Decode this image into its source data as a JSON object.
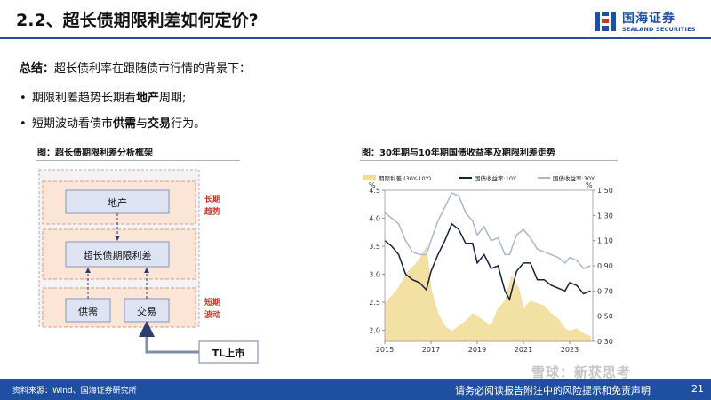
{
  "header": {
    "title": "2.2、超长债期限利差如何定价?",
    "logo_cn": "国海证券",
    "logo_en": "SEALAND SECURITIES"
  },
  "summary": {
    "label": "总结：",
    "text": "超长债利率在跟随债市行情的背景下：",
    "bullet1_pre": "期限利差趋势长期看",
    "bullet1_hl": "地产",
    "bullet1_post": "周期;",
    "bullet2_pre": "短期波动看债市",
    "bullet2_hl1": "供需",
    "bullet2_mid": "与",
    "bullet2_hl2": "交易",
    "bullet2_post": "行为。"
  },
  "diagram": {
    "title": "图：超长债期限利差分析框架",
    "real_estate": "地产",
    "spread": "超长债期限利差",
    "supply_demand": "供需",
    "trading": "交易",
    "tl": "TL上市",
    "long_term": [
      "长期",
      "趋势"
    ],
    "short_term": [
      "短期",
      "波动"
    ]
  },
  "chart_data": {
    "type": "line",
    "title": "图：30年期与10年期国债收益率及期限利差走势",
    "x_ticks": [
      "2015",
      "2017",
      "2019",
      "2021",
      "2023"
    ],
    "left_unit": "%",
    "right_unit": "%",
    "left_ticks": [
      "4.5",
      "4.0",
      "3.5",
      "3.0",
      "2.5",
      "2.0"
    ],
    "right_ticks": [
      "1.50",
      "1.30",
      "1.10",
      "0.90",
      "0.70",
      "0.50",
      "0.30"
    ],
    "left_ylim": [
      1.8,
      4.5
    ],
    "right_ylim": [
      0.3,
      1.5
    ],
    "xlim": [
      2015.0,
      2024.0
    ],
    "colors": {
      "spread": "#f2dc93",
      "y10": "#14213d",
      "y30": "#a9b7cd"
    },
    "series": [
      {
        "name": "期限利差 (30Y-10Y)",
        "axis": "right",
        "style": "area",
        "x": [
          2015.0,
          2015.5,
          2016.0,
          2016.5,
          2016.8,
          2017.0,
          2017.3,
          2017.6,
          2017.9,
          2018.2,
          2018.5,
          2018.8,
          2019.0,
          2019.3,
          2019.6,
          2019.9,
          2020.2,
          2020.5,
          2020.8,
          2021.0,
          2021.3,
          2021.6,
          2021.9,
          2022.2,
          2022.5,
          2022.8,
          2023.0,
          2023.3,
          2023.6,
          2023.9
        ],
        "values": [
          0.6,
          0.7,
          0.85,
          0.95,
          1.05,
          0.72,
          0.52,
          0.42,
          0.38,
          0.42,
          0.46,
          0.52,
          0.5,
          0.46,
          0.42,
          0.56,
          0.62,
          0.82,
          0.72,
          0.56,
          0.62,
          0.6,
          0.58,
          0.52,
          0.48,
          0.4,
          0.38,
          0.4,
          0.36,
          0.34
        ]
      },
      {
        "name": "国债收益率:10Y",
        "axis": "left",
        "style": "line",
        "x": [
          2015.0,
          2015.3,
          2015.6,
          2015.9,
          2016.2,
          2016.5,
          2016.8,
          2017.0,
          2017.3,
          2017.6,
          2017.9,
          2018.2,
          2018.5,
          2018.8,
          2019.0,
          2019.3,
          2019.6,
          2019.9,
          2020.2,
          2020.4,
          2020.7,
          2021.0,
          2021.3,
          2021.6,
          2021.9,
          2022.2,
          2022.5,
          2022.8,
          2023.0,
          2023.3,
          2023.6,
          2023.9
        ],
        "values": [
          3.6,
          3.5,
          3.35,
          3.0,
          2.9,
          2.85,
          2.72,
          3.05,
          3.35,
          3.6,
          3.9,
          3.8,
          3.55,
          3.55,
          3.2,
          3.35,
          3.1,
          3.15,
          2.7,
          2.55,
          3.05,
          3.2,
          3.2,
          2.9,
          2.9,
          2.8,
          2.75,
          2.7,
          2.85,
          2.8,
          2.65,
          2.7
        ]
      },
      {
        "name": "国债收益率:30Y",
        "axis": "left",
        "style": "line",
        "x": [
          2015.0,
          2015.3,
          2015.6,
          2015.9,
          2016.2,
          2016.5,
          2016.8,
          2017.0,
          2017.3,
          2017.6,
          2017.9,
          2018.2,
          2018.5,
          2018.8,
          2019.0,
          2019.3,
          2019.6,
          2019.9,
          2020.2,
          2020.4,
          2020.7,
          2021.0,
          2021.3,
          2021.6,
          2021.9,
          2022.2,
          2022.5,
          2022.8,
          2023.0,
          2023.3,
          2023.6,
          2023.9
        ],
        "values": [
          4.1,
          4.0,
          3.9,
          3.6,
          3.4,
          3.35,
          3.35,
          3.6,
          3.95,
          4.2,
          4.45,
          4.4,
          4.1,
          3.95,
          3.7,
          3.85,
          3.6,
          3.65,
          3.35,
          3.35,
          3.7,
          3.8,
          3.65,
          3.45,
          3.4,
          3.35,
          3.3,
          3.2,
          3.3,
          3.25,
          3.1,
          3.15
        ]
      }
    ]
  },
  "footer": {
    "source": "资料来源：Wind、国海证券研究所",
    "disclaimer": "请务必阅读报告附注中的风险提示和免责声明",
    "page": "21",
    "watermark": "雪球：新获思考"
  }
}
